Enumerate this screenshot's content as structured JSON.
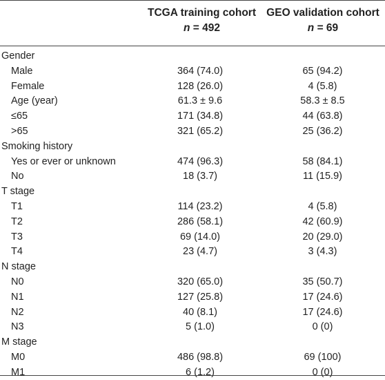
{
  "header": {
    "col1_title": "TCGA training cohort",
    "col1_n_label": "n",
    "col1_n_value": "= 492",
    "col2_title": "GEO validation cohort",
    "col2_n_label": "n",
    "col2_n_value": "= 69"
  },
  "rows": [
    {
      "label": "Gender",
      "c1": "",
      "c2": ""
    },
    {
      "label": "Male",
      "c1": "364 (74.0)",
      "c2": "65 (94.2)"
    },
    {
      "label": "Female",
      "c1": "128 (26.0)",
      "c2": "4 (5.8)"
    },
    {
      "label": "Age (year)",
      "c1": "61.3 ± 9.6",
      "c2": "58.3 ± 8.5"
    },
    {
      "label": "≤65",
      "c1": "171 (34.8)",
      "c2": "44 (63.8)"
    },
    {
      "label": ">65",
      "c1": "321 (65.2)",
      "c2": "25 (36.2)"
    },
    {
      "label": "Smoking history",
      "c1": "",
      "c2": ""
    },
    {
      "label": "Yes or ever or unknown",
      "c1": "474 (96.3)",
      "c2": "58 (84.1)"
    },
    {
      "label": "No",
      "c1": "18 (3.7)",
      "c2": "11 (15.9)"
    },
    {
      "label": "T stage",
      "c1": "",
      "c2": ""
    },
    {
      "label": "T1",
      "c1": "114 (23.2)",
      "c2": "4 (5.8)"
    },
    {
      "label": "T2",
      "c1": "286 (58.1)",
      "c2": "42 (60.9)"
    },
    {
      "label": "T3",
      "c1": "69 (14.0)",
      "c2": "20 (29.0)"
    },
    {
      "label": "T4",
      "c1": "23 (4.7)",
      "c2": "3 (4.3)"
    },
    {
      "label": "N stage",
      "c1": "",
      "c2": ""
    },
    {
      "label": "N0",
      "c1": "320 (65.0)",
      "c2": "35 (50.7)"
    },
    {
      "label": "N1",
      "c1": "127 (25.8)",
      "c2": "17 (24.6)"
    },
    {
      "label": "N2",
      "c1": "40 (8.1)",
      "c2": "17 (24.6)"
    },
    {
      "label": "N3",
      "c1": "5 (1.0)",
      "c2": "0 (0)"
    },
    {
      "label": "M stage",
      "c1": "",
      "c2": ""
    },
    {
      "label": "M0",
      "c1": "486 (98.8)",
      "c2": "69 (100)"
    },
    {
      "label": "M1",
      "c1": "6 (1.2)",
      "c2": "0 (0)"
    }
  ]
}
